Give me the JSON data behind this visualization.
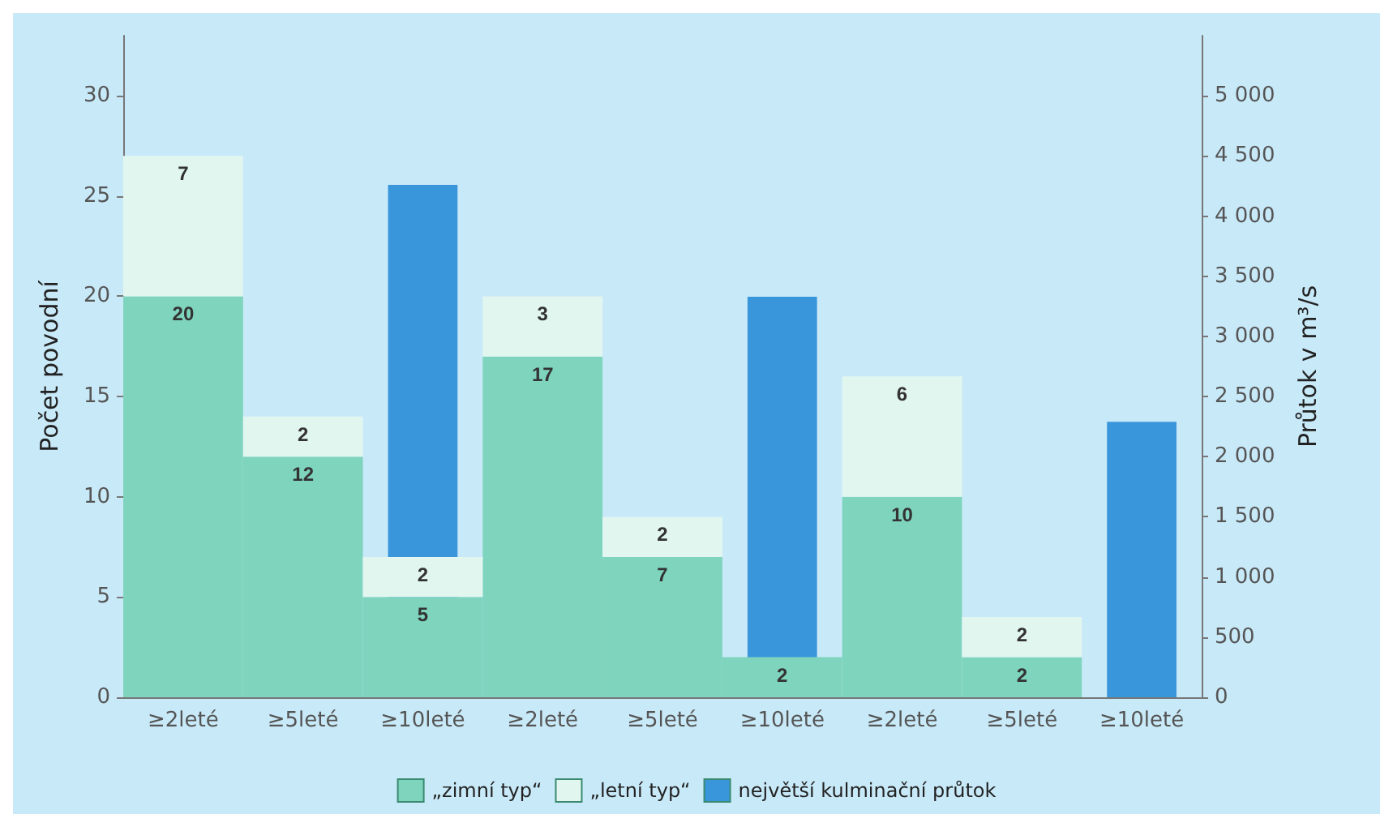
{
  "chart_data": {
    "type": "bar",
    "xlabel": null,
    "ylabel": "Počet povodní",
    "y2label": "Průtok v m³/s",
    "categories": [
      "≥2leté",
      "≥5leté",
      "≥10leté",
      "≥2leté",
      "≥5leté",
      "≥10leté",
      "≥2leté",
      "≥5leté",
      "≥10leté"
    ],
    "stacked": true,
    "series": [
      {
        "name": "„zimní typ“",
        "color": "#7fd4be",
        "values": [
          20,
          12,
          5,
          17,
          7,
          2,
          10,
          2,
          null
        ],
        "value_labels": [
          "20",
          "12",
          "5",
          "17",
          "7",
          "2",
          "10",
          "2",
          null
        ]
      },
      {
        "name": "„letní typ“",
        "color": "#e2f6f0",
        "values": [
          7,
          2,
          2,
          3,
          2,
          null,
          6,
          2,
          null
        ],
        "value_labels": [
          "7",
          "2",
          "2",
          "3",
          "2",
          null,
          "6",
          "2",
          null
        ]
      },
      {
        "name": "největší kulminační průtok",
        "color": "#3a96da",
        "axis": "y2",
        "values": [
          null,
          null,
          4260,
          null,
          null,
          3330,
          null,
          null,
          2290
        ]
      }
    ],
    "ylim": [
      0,
      33
    ],
    "yticks": [
      0,
      5,
      10,
      15,
      20,
      25,
      30
    ],
    "y2lim": [
      0,
      5500
    ],
    "y2ticks": [
      0,
      500,
      {
        "value": 1000,
        "label": "1 000"
      },
      {
        "value": 1500,
        "label": "1 500"
      },
      {
        "value": 2000,
        "label": "2 000"
      },
      {
        "value": 2500,
        "label": "2 500"
      },
      {
        "value": 3000,
        "label": "3 000"
      },
      {
        "value": 3500,
        "label": "3 500"
      },
      {
        "value": 4000,
        "label": "4 000"
      },
      {
        "value": 4500,
        "label": "4 500"
      },
      {
        "value": 5000,
        "label": "5 000"
      }
    ],
    "grid": false,
    "legend": "bottom"
  }
}
